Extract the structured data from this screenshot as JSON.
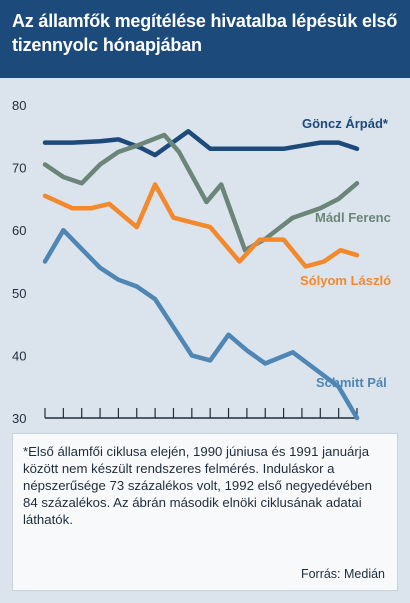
{
  "title": "Az államfők megítélése hivatalba lépésük első tizennyolc hónapjában",
  "note": "*Első államfői ciklusa elején, 1990 júniusa és 1991 januárja között nem készült rendszeres felmérés. Induláskor a népszerűsége 73 százalékos volt, 1992 első negyedévében 84 százalékos. Az ábrán második elnöki ciklusának adatai láthatók.",
  "source": "Forrás: Medián",
  "chart_data": {
    "type": "line",
    "title": "Az államfők megítélése hivatalba lépésük első tizennyolc hónapjában",
    "xlabel": "",
    "ylabel": "",
    "x": [
      1,
      2,
      3,
      4,
      5,
      6,
      7,
      8,
      9,
      10,
      11,
      12,
      13,
      14,
      15,
      16,
      17,
      18
    ],
    "xlim": [
      1,
      18
    ],
    "ylim": [
      30,
      80
    ],
    "yticks": [
      30,
      40,
      50,
      60,
      70,
      80
    ],
    "grid": false,
    "legend": "direct labels at line ends",
    "series": [
      {
        "name": "Göncz Árpád*",
        "color": "#1c4a7a",
        "points": [
          [
            1,
            74
          ],
          [
            2.5,
            74
          ],
          [
            4,
            74.2
          ],
          [
            5,
            74.5
          ],
          [
            6.2,
            73.2
          ],
          [
            7,
            72
          ],
          [
            8.8,
            75.8
          ],
          [
            10,
            73
          ],
          [
            11,
            73
          ],
          [
            12,
            73
          ],
          [
            13,
            73
          ],
          [
            14,
            73
          ],
          [
            15,
            73.5
          ],
          [
            16,
            74
          ],
          [
            17,
            74
          ],
          [
            18,
            73
          ]
        ]
      },
      {
        "name": "Mádl Ferenc",
        "color": "#6b8578",
        "points": [
          [
            1,
            70.5
          ],
          [
            2,
            68.5
          ],
          [
            3,
            67.5
          ],
          [
            4,
            70.5
          ],
          [
            5,
            72.5
          ],
          [
            6,
            73.5
          ],
          [
            7.5,
            75.2
          ],
          [
            8.3,
            72.5
          ],
          [
            9.8,
            64.5
          ],
          [
            10.6,
            67.3
          ],
          [
            11.9,
            56.8
          ],
          [
            13,
            58.6
          ],
          [
            14.5,
            62
          ],
          [
            16,
            63.5
          ],
          [
            17,
            65
          ],
          [
            18,
            67.5
          ]
        ]
      },
      {
        "name": "Sólyom László",
        "color": "#f3892b",
        "points": [
          [
            1,
            65.5
          ],
          [
            2.5,
            63.5
          ],
          [
            3.5,
            63.5
          ],
          [
            4.5,
            64.2
          ],
          [
            6,
            60.5
          ],
          [
            7,
            67.3
          ],
          [
            8,
            62
          ],
          [
            10,
            60.5
          ],
          [
            11.6,
            55
          ],
          [
            12.7,
            58.5
          ],
          [
            14,
            58.5
          ],
          [
            15.2,
            54.2
          ],
          [
            16.2,
            55
          ],
          [
            17.1,
            56.8
          ],
          [
            18,
            56
          ]
        ]
      },
      {
        "name": "Schmitt Pál",
        "color": "#4f86b3",
        "points": [
          [
            1,
            55
          ],
          [
            2,
            60
          ],
          [
            3,
            57
          ],
          [
            4,
            54
          ],
          [
            5,
            52.1
          ],
          [
            6,
            51
          ],
          [
            7,
            49
          ],
          [
            8,
            44.5
          ],
          [
            9,
            40
          ],
          [
            10,
            39.2
          ],
          [
            11,
            43.3
          ],
          [
            12,
            40.8
          ],
          [
            13,
            38.7
          ],
          [
            14.5,
            40.5
          ],
          [
            15.5,
            38.3
          ],
          [
            17,
            35
          ],
          [
            18,
            30
          ]
        ]
      }
    ]
  }
}
